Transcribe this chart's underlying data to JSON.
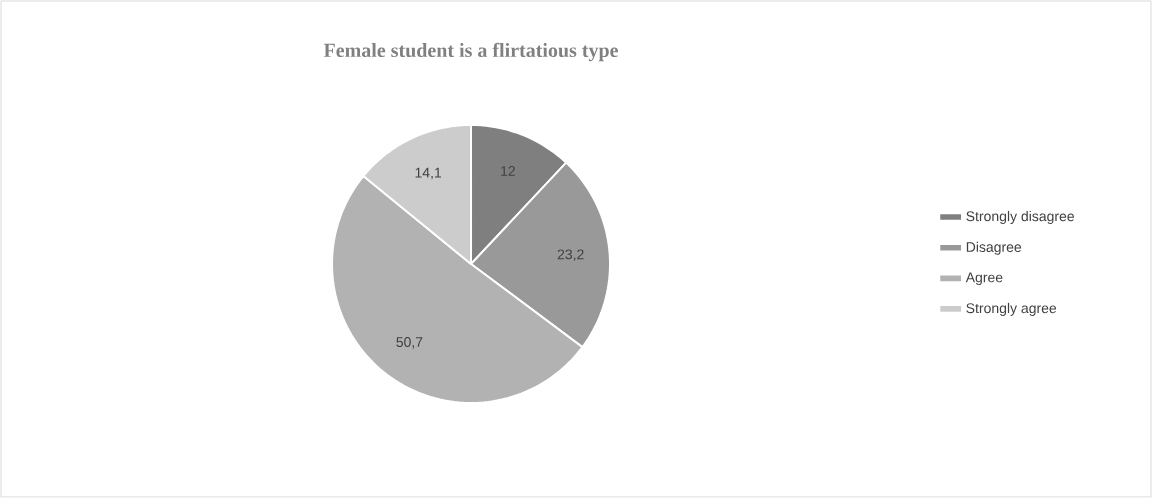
{
  "chart_data": {
    "type": "pie",
    "title": "Female student is a flirtatious type",
    "categories": [
      "Strongly disagree",
      "Disagree",
      "Agree",
      "Strongly agree"
    ],
    "values": [
      12,
      23.2,
      50.7,
      14.1
    ],
    "value_labels": [
      "12",
      "23,2",
      "50,7",
      "14,1"
    ],
    "colors": [
      "#7f7f7f",
      "#999999",
      "#b2b2b2",
      "#cccccc"
    ],
    "legend": "right"
  }
}
